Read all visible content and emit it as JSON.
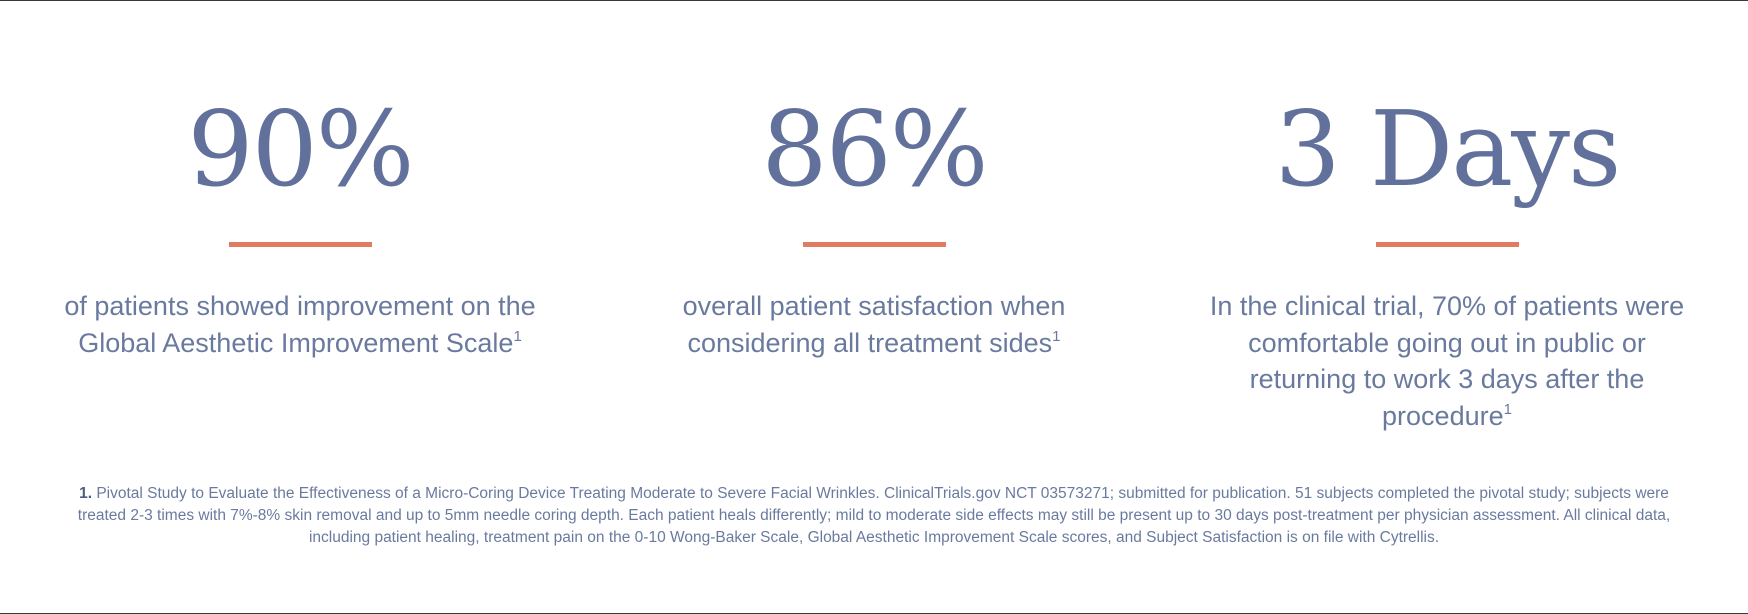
{
  "stats": [
    {
      "value": "90%",
      "description": "of patients showed improvement on the Global Aesthetic Improvement Scale",
      "footnote_ref": "1"
    },
    {
      "value": "86%",
      "description": "overall patient satisfaction when considering all treatment sides",
      "footnote_ref": "1"
    },
    {
      "value": "3 Days",
      "description": "In the clinical trial, 70% of patients were comfortable going out in public or returning to work 3 days after the procedure",
      "footnote_ref": "1"
    }
  ],
  "footnote": {
    "number": "1.",
    "text": "Pivotal Study to Evaluate the Effectiveness of a Micro-Coring Device Treating Moderate to Severe Facial Wrinkles. ClinicalTrials.gov NCT 03573271; submitted for publication. 51 subjects completed the pivotal study; subjects were treated 2-3 times with 7%-8% skin removal and up to 5mm needle coring depth. Each patient heals differently; mild to moderate side effects may still be present up to 30 days post-treatment per physician assessment. All clinical data, including patient healing, treatment pain on the 0-10 Wong-Baker Scale, Global Aesthetic Improvement Scale scores, and Subject Satisfaction is on file with Cytrellis."
  },
  "colors": {
    "text": "#6a7a9f",
    "accent_rule": "#e07c62",
    "border": "#3a3a3a"
  }
}
